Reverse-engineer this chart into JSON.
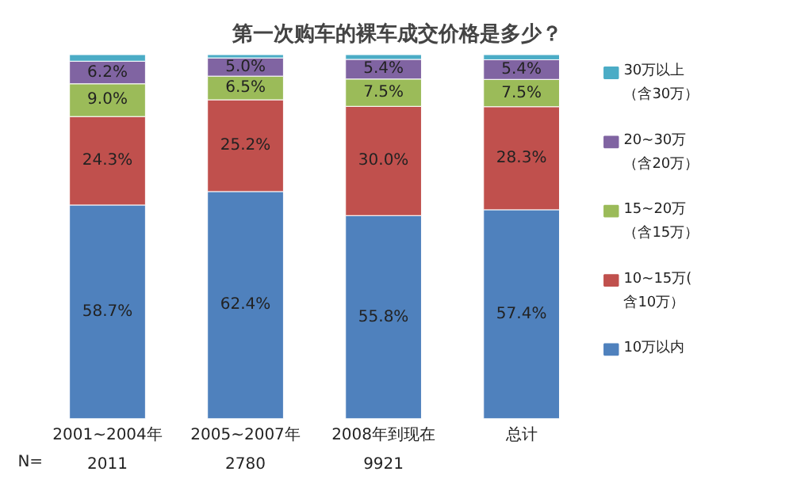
{
  "chart_data": {
    "type": "bar",
    "stacked": true,
    "title": "第一次购车的裸车成交价格是多少？",
    "categories": [
      "2001~2004年",
      "2005~2007年",
      "2008年到现在",
      "总计"
    ],
    "series": [
      {
        "name": "10万以内",
        "color": "#4f81bd",
        "values": [
          58.7,
          62.4,
          55.8,
          57.4
        ],
        "value_labels": [
          "58.7%",
          "62.4%",
          "55.8%",
          "57.4%"
        ]
      },
      {
        "name": "10~15万(含10万）",
        "color": "#c0504d",
        "values": [
          24.3,
          25.2,
          30.0,
          28.3
        ],
        "value_labels": [
          "24.3%",
          "25.2%",
          "30.0%",
          "28.3%"
        ]
      },
      {
        "name": "15~20万（含15万）",
        "color": "#9bbb59",
        "values": [
          9.0,
          6.5,
          7.5,
          7.5
        ],
        "value_labels": [
          "9.0%",
          "6.5%",
          "7.5%",
          "7.5%"
        ]
      },
      {
        "name": "20~30万（含20万）",
        "color": "#8064a2",
        "values": [
          6.2,
          5.0,
          5.4,
          5.4
        ],
        "value_labels": [
          "6.2%",
          "5.0%",
          "5.4%",
          "5.4%"
        ]
      },
      {
        "name": "30万以上（含30万）",
        "color": "#4bacc6",
        "values": [
          1.8,
          0.9,
          1.3,
          1.4
        ],
        "value_labels": [
          null,
          null,
          null,
          null
        ]
      }
    ],
    "legend": "right",
    "annotations": [
      "N=",
      "2011",
      "2780",
      "9921"
    ]
  }
}
